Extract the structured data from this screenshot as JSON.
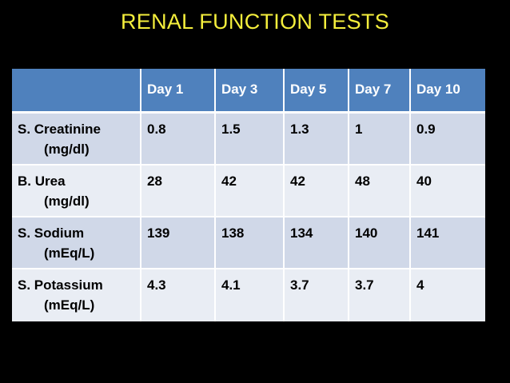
{
  "title": "RENAL FUNCTION TESTS",
  "table": {
    "headers": [
      "",
      "Day 1",
      "Day 3",
      "Day 5",
      "Day 7",
      "Day 10"
    ],
    "rows": [
      {
        "name": "S. Creatinine",
        "unit": "(mg/dl)",
        "values": [
          "0.8",
          "1.5",
          "1.3",
          "1",
          "0.9"
        ]
      },
      {
        "name": "B. Urea",
        "unit": "(mg/dl)",
        "values": [
          "28",
          "42",
          "42",
          "48",
          "40"
        ]
      },
      {
        "name": "S. Sodium",
        "unit": "(mEq/L)",
        "values": [
          "139",
          "138",
          "134",
          "140",
          "141"
        ]
      },
      {
        "name": "S. Potassium",
        "unit": "(mEq/L)",
        "values": [
          "4.3",
          "4.1",
          "3.7",
          "3.7",
          "4"
        ]
      }
    ]
  }
}
